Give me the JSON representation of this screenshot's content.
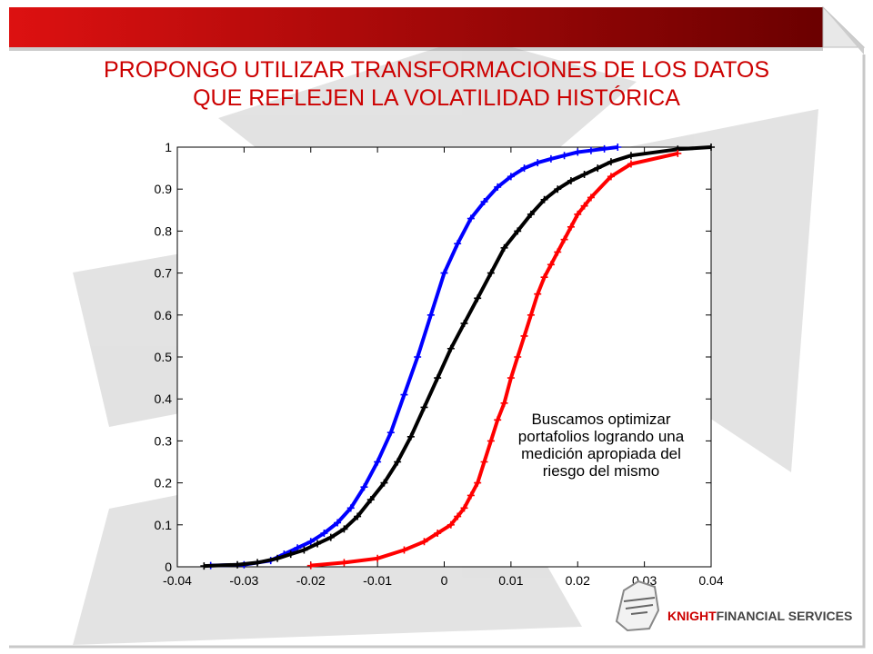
{
  "slide": {
    "title_line1": "PROPONGO UTILIZAR TRANSFORMACIONES DE LOS DATOS",
    "title_line2": "QUE REFLEJEN LA VOLATILIDAD HISTÓRICA",
    "annotation": "Buscamos optimizar portafolios logrando una medición apropiada del riesgo del mismo",
    "logo": {
      "brand": "KNIGHT",
      "rest": "FINANCIAL SERVICES"
    }
  },
  "colors": {
    "title": "#cc0000",
    "header_dark": "#6b0000",
    "header_light": "#dd1111",
    "series": [
      "#0000ff",
      "#000000",
      "#ff0000"
    ]
  },
  "chart_data": {
    "type": "scatter",
    "title": "",
    "xlabel": "",
    "ylabel": "",
    "xlim": [
      -0.04,
      0.04
    ],
    "ylim": [
      0,
      1
    ],
    "xticks": [
      -0.04,
      -0.03,
      -0.02,
      -0.01,
      0,
      0.01,
      0.02,
      0.03,
      0.04
    ],
    "xtick_labels": [
      "-0.04",
      "-0.03",
      "-0.02",
      "-0.01",
      "0",
      "0.01",
      "0.02",
      "0.03",
      "0.04"
    ],
    "yticks": [
      0,
      0.1,
      0.2,
      0.3,
      0.4,
      0.5,
      0.6,
      0.7,
      0.8,
      0.9,
      1
    ],
    "ytick_labels": [
      "0",
      "0.1",
      "0.2",
      "0.3",
      "0.4",
      "0.5",
      "0.6",
      "0.7",
      "0.8",
      "0.9",
      "1"
    ],
    "grid": false,
    "marker": "+",
    "series": [
      {
        "color": "#0000ff",
        "x": [
          -0.035,
          -0.03,
          -0.026,
          -0.024,
          -0.022,
          -0.02,
          -0.018,
          -0.016,
          -0.014,
          -0.012,
          -0.01,
          -0.008,
          -0.006,
          -0.004,
          -0.002,
          0,
          0.002,
          0.004,
          0.006,
          0.008,
          0.01,
          0.012,
          0.014,
          0.016,
          0.018,
          0.02,
          0.022,
          0.024,
          0.026
        ],
        "y": [
          0.003,
          0.005,
          0.015,
          0.03,
          0.045,
          0.06,
          0.08,
          0.105,
          0.14,
          0.19,
          0.25,
          0.32,
          0.41,
          0.5,
          0.6,
          0.7,
          0.77,
          0.83,
          0.87,
          0.905,
          0.93,
          0.95,
          0.963,
          0.972,
          0.98,
          0.988,
          0.992,
          0.996,
          1.0
        ]
      },
      {
        "color": "#000000",
        "x": [
          -0.036,
          -0.031,
          -0.028,
          -0.025,
          -0.023,
          -0.021,
          -0.019,
          -0.017,
          -0.015,
          -0.013,
          -0.011,
          -0.009,
          -0.007,
          -0.005,
          -0.003,
          -0.001,
          0.001,
          0.003,
          0.005,
          0.007,
          0.009,
          0.011,
          0.013,
          0.015,
          0.017,
          0.019,
          0.021,
          0.023,
          0.025,
          0.028,
          0.035,
          0.04
        ],
        "y": [
          0.002,
          0.005,
          0.01,
          0.02,
          0.03,
          0.04,
          0.055,
          0.07,
          0.09,
          0.12,
          0.16,
          0.2,
          0.25,
          0.31,
          0.38,
          0.45,
          0.52,
          0.58,
          0.64,
          0.7,
          0.76,
          0.8,
          0.84,
          0.875,
          0.9,
          0.92,
          0.935,
          0.95,
          0.965,
          0.98,
          0.995,
          1.0
        ]
      },
      {
        "color": "#ff0000",
        "x": [
          -0.02,
          -0.015,
          -0.01,
          -0.006,
          -0.003,
          -0.001,
          0.001,
          0.002,
          0.003,
          0.004,
          0.005,
          0.006,
          0.007,
          0.008,
          0.009,
          0.01,
          0.011,
          0.012,
          0.013,
          0.014,
          0.015,
          0.016,
          0.017,
          0.018,
          0.019,
          0.02,
          0.021,
          0.022,
          0.025,
          0.028,
          0.035
        ],
        "y": [
          0.003,
          0.01,
          0.02,
          0.04,
          0.06,
          0.08,
          0.1,
          0.12,
          0.14,
          0.17,
          0.2,
          0.25,
          0.3,
          0.35,
          0.39,
          0.45,
          0.5,
          0.55,
          0.6,
          0.65,
          0.69,
          0.72,
          0.75,
          0.78,
          0.81,
          0.84,
          0.86,
          0.88,
          0.93,
          0.96,
          0.985
        ]
      }
    ]
  }
}
